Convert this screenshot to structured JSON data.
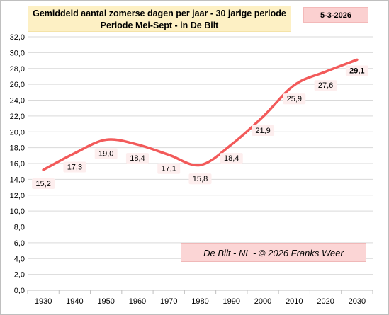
{
  "chart_data": {
    "type": "line",
    "title_line1": "Gemiddeld aantal zomerse dagen per jaar - 30 jarige periode",
    "title_line2": "Periode Mei-Sept  - in De Bilt",
    "date_label": "5-3-2026",
    "credit": "De Bilt - NL  -  © 2026 Franks Weer",
    "x": [
      "1930",
      "1940",
      "1950",
      "1960",
      "1970",
      "1980",
      "1990",
      "2000",
      "2010",
      "2020",
      "2030"
    ],
    "series": [
      {
        "values": [
          15.2,
          17.3,
          19.0,
          18.4,
          17.1,
          15.8,
          18.4,
          21.9,
          25.9,
          27.6,
          29.1
        ],
        "labels": [
          "15,2",
          "17,3",
          "19,0",
          "18,4",
          "17,1",
          "15,8",
          "18,4",
          "21,9",
          "25,9",
          "27,6",
          "29,1"
        ],
        "color": "#f25a5a"
      }
    ],
    "yticks": [
      "0,0",
      "2,0",
      "4,0",
      "6,0",
      "8,0",
      "10,0",
      "12,0",
      "14,0",
      "16,0",
      "18,0",
      "20,0",
      "22,0",
      "24,0",
      "26,0",
      "28,0",
      "30,0",
      "32,0"
    ],
    "ylim": [
      0,
      32
    ],
    "grid": true,
    "gridline_color": "#d9d9d9",
    "label_background": "#fdeeee"
  }
}
